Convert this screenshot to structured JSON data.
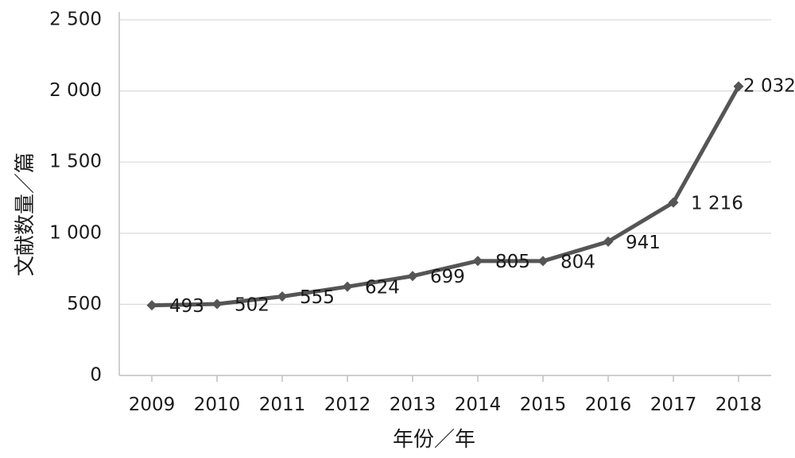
{
  "chart_data": {
    "type": "line",
    "title": "",
    "xlabel": "年份／年",
    "ylabel": "文献数量／篇",
    "categories": [
      "2009",
      "2010",
      "2011",
      "2012",
      "2013",
      "2014",
      "2015",
      "2016",
      "2017",
      "2018"
    ],
    "series": [
      {
        "values": [
          493,
          502,
          555,
          624,
          699,
          805,
          804,
          941,
          1216,
          2032
        ]
      }
    ],
    "data_labels": [
      "493",
      "502",
      "555",
      "624",
      "699",
      "805",
      "804",
      "941",
      "1 216",
      "2 032"
    ],
    "ylim": [
      0,
      2500
    ],
    "y_ticks": [
      0,
      500,
      1000,
      1500,
      2000,
      2500
    ],
    "y_tick_labels": [
      "0",
      "500",
      "1 000",
      "1 500",
      "2 000",
      "2 500"
    ],
    "grid": true,
    "legend": "none",
    "marker": "diamond",
    "colors": {
      "line": "#555555",
      "grid": "#d9d9d9",
      "axis": "#bfbfbf"
    }
  }
}
